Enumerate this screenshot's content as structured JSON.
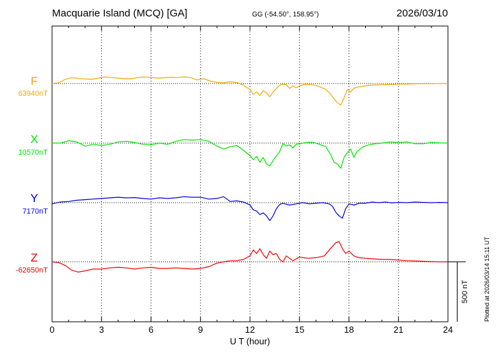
{
  "header": {
    "station": "Macquarie Island (MCQ)  [GA]",
    "coords": "GG (-54.50°, 158.95°)",
    "date": "2026/03/10"
  },
  "footnote": "Plotted at 2026/03/14 15:11 UT",
  "scale_label": "500 nT",
  "chart_data": {
    "type": "line",
    "xlabel": "U T (hour)",
    "xlim": [
      0,
      24
    ],
    "xticks": [
      0,
      3,
      6,
      9,
      12,
      15,
      18,
      21,
      24
    ],
    "grid": "dotted vertical every 3 hours",
    "units": "nT",
    "scale_bar_nT": 500,
    "series": [
      {
        "name": "F",
        "baseline_label": "63940nT",
        "baseline": 63940,
        "color": "#f5a800",
        "x": [
          0,
          0.4,
          0.8,
          1.2,
          1.6,
          2.0,
          2.4,
          2.8,
          3.2,
          3.6,
          4.0,
          4.4,
          4.8,
          5.2,
          5.6,
          6.0,
          6.4,
          6.8,
          7.2,
          7.6,
          8.0,
          8.4,
          8.8,
          9.2,
          9.6,
          10.0,
          10.4,
          10.8,
          11.2,
          11.6,
          12.0,
          12.2,
          12.4,
          12.6,
          12.8,
          13.0,
          13.2,
          13.4,
          13.6,
          13.8,
          14.0,
          14.2,
          14.4,
          14.6,
          14.8,
          15.0,
          15.4,
          15.8,
          16.2,
          16.6,
          16.9,
          17.1,
          17.3,
          17.5,
          17.7,
          17.9,
          18.1,
          18.3,
          18.5,
          18.8,
          19.2,
          19.6,
          20.0,
          20.5,
          21.0,
          21.5,
          22.0,
          22.5,
          23.0,
          23.5,
          24.0
        ],
        "y": [
          63940,
          63945,
          63975,
          63990,
          63982,
          63978,
          63975,
          63985,
          63995,
          63990,
          63985,
          63980,
          63980,
          63990,
          63995,
          63990,
          63985,
          63988,
          63992,
          63990,
          63995,
          63990,
          63970,
          63980,
          63960,
          63950,
          63945,
          63955,
          63948,
          63925,
          63890,
          63850,
          63870,
          63840,
          63880,
          63860,
          63830,
          63870,
          63900,
          63925,
          63935,
          63930,
          63900,
          63920,
          63905,
          63920,
          63935,
          63930,
          63915,
          63890,
          63850,
          63810,
          63780,
          63760,
          63820,
          63890,
          63870,
          63900,
          63910,
          63915,
          63925,
          63928,
          63930,
          63932,
          63935,
          63935,
          63938,
          63938,
          63938,
          63940,
          63940
        ]
      },
      {
        "name": "X",
        "baseline_label": "10570nT",
        "baseline": 10570,
        "color": "#00e600",
        "x": [
          0,
          0.5,
          1.0,
          1.5,
          2.0,
          2.5,
          3.0,
          3.5,
          4.0,
          4.5,
          5.0,
          5.5,
          6.0,
          6.5,
          7.0,
          7.5,
          8.0,
          8.5,
          9.0,
          9.5,
          10.0,
          10.4,
          10.8,
          11.2,
          11.6,
          12.0,
          12.2,
          12.4,
          12.6,
          12.8,
          13.0,
          13.2,
          13.4,
          13.6,
          13.8,
          14.0,
          14.2,
          14.4,
          14.6,
          14.8,
          15.0,
          15.4,
          15.8,
          16.2,
          16.6,
          16.9,
          17.1,
          17.3,
          17.5,
          17.7,
          17.9,
          18.1,
          18.3,
          18.5,
          18.8,
          19.2,
          19.6,
          20.0,
          20.5,
          21.0,
          21.5,
          22.0,
          22.5,
          23.0,
          23.5,
          24.0
        ],
        "y": [
          10570,
          10570,
          10590,
          10580,
          10545,
          10560,
          10550,
          10560,
          10580,
          10585,
          10575,
          10560,
          10555,
          10570,
          10560,
          10585,
          10600,
          10595,
          10600,
          10585,
          10545,
          10520,
          10540,
          10550,
          10510,
          10465,
          10430,
          10460,
          10410,
          10450,
          10395,
          10380,
          10425,
          10465,
          10500,
          10565,
          10545,
          10555,
          10530,
          10560,
          10565,
          10575,
          10578,
          10560,
          10540,
          10470,
          10410,
          10395,
          10360,
          10450,
          10490,
          10520,
          10450,
          10500,
          10535,
          10555,
          10565,
          10570,
          10580,
          10575,
          10580,
          10565,
          10565,
          10575,
          10572,
          10570
        ]
      },
      {
        "name": "Y",
        "baseline_label": "7170nT",
        "baseline": 7170,
        "color": "#0000dd",
        "x": [
          0,
          0.5,
          1.0,
          1.5,
          2.0,
          2.5,
          3.0,
          3.5,
          4.0,
          4.5,
          5.0,
          5.5,
          6.0,
          6.5,
          7.0,
          7.5,
          8.0,
          8.5,
          9.0,
          9.5,
          10.0,
          10.4,
          10.8,
          11.2,
          11.6,
          12.0,
          12.2,
          12.4,
          12.6,
          12.8,
          13.0,
          13.2,
          13.4,
          13.6,
          13.8,
          14.0,
          14.4,
          14.8,
          15.2,
          15.6,
          16.0,
          16.4,
          16.8,
          17.0,
          17.2,
          17.4,
          17.6,
          17.8,
          18.0,
          18.3,
          18.6,
          19.0,
          19.4,
          19.8,
          20.2,
          20.6,
          21.0,
          21.5,
          22.0,
          22.5,
          23.0,
          23.5,
          24.0
        ],
        "y": [
          7160,
          7175,
          7180,
          7190,
          7195,
          7200,
          7205,
          7210,
          7215,
          7210,
          7212,
          7205,
          7200,
          7210,
          7205,
          7210,
          7220,
          7215,
          7215,
          7200,
          7205,
          7220,
          7180,
          7185,
          7175,
          7150,
          7110,
          7100,
          7070,
          7085,
          7060,
          7020,
          7060,
          7120,
          7155,
          7165,
          7150,
          7160,
          7170,
          7160,
          7165,
          7170,
          7160,
          7140,
          7090,
          7060,
          7040,
          7120,
          7160,
          7150,
          7165,
          7165,
          7175,
          7170,
          7175,
          7168,
          7172,
          7170,
          7175,
          7172,
          7170,
          7172,
          7170
        ]
      },
      {
        "name": "Z",
        "baseline_label": "-62650nT",
        "baseline": -62650,
        "color": "#ee0000",
        "x": [
          0,
          0.4,
          0.8,
          1.2,
          1.6,
          2.0,
          2.5,
          3.0,
          3.5,
          4.0,
          4.5,
          5.0,
          5.5,
          6.0,
          6.5,
          7.0,
          7.5,
          8.0,
          8.5,
          9.0,
          9.5,
          10.0,
          10.4,
          10.8,
          11.2,
          11.6,
          12.0,
          12.2,
          12.4,
          12.6,
          12.8,
          13.0,
          13.2,
          13.4,
          13.6,
          13.8,
          14.0,
          14.2,
          14.4,
          14.6,
          14.8,
          15.0,
          15.5,
          16.0,
          16.5,
          17.0,
          17.2,
          17.4,
          17.6,
          17.8,
          18.0,
          18.3,
          18.6,
          19.0,
          19.5,
          20.0,
          20.5,
          21.0,
          21.5,
          22.0,
          22.5,
          23.0,
          23.5,
          24.0
        ],
        "y": [
          -62650,
          -62655,
          -62680,
          -62720,
          -62735,
          -62725,
          -62710,
          -62710,
          -62700,
          -62695,
          -62700,
          -62710,
          -62700,
          -62695,
          -62705,
          -62705,
          -62700,
          -62705,
          -62710,
          -62705,
          -62690,
          -62660,
          -62650,
          -62640,
          -62640,
          -62630,
          -62600,
          -62550,
          -62580,
          -62540,
          -62590,
          -62620,
          -62560,
          -62590,
          -62580,
          -62630,
          -62650,
          -62600,
          -62620,
          -62640,
          -62625,
          -62610,
          -62620,
          -62615,
          -62600,
          -62520,
          -62490,
          -62480,
          -62540,
          -62580,
          -62560,
          -62600,
          -62615,
          -62620,
          -62625,
          -62630,
          -62630,
          -62635,
          -62640,
          -62642,
          -62645,
          -62648,
          -62650,
          -62650
        ]
      }
    ]
  }
}
